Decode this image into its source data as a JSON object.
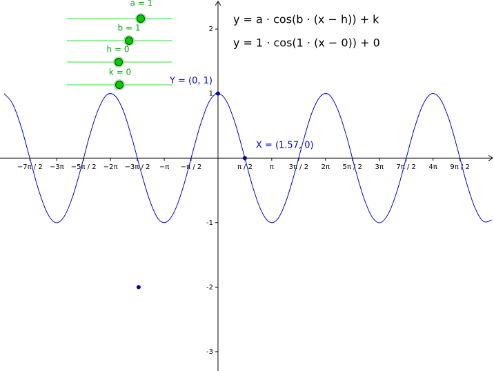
{
  "chart_data": {
    "type": "line",
    "xlim": [
      -12.74,
      16.13
    ],
    "ylim": [
      -3.3,
      2.45
    ],
    "xticks": [
      {
        "value": -10.9956,
        "label": "−7π / 2"
      },
      {
        "value": -9.4248,
        "label": "−3π"
      },
      {
        "value": -7.854,
        "label": "−5π / 2"
      },
      {
        "value": -6.2832,
        "label": "−2π"
      },
      {
        "value": -4.7124,
        "label": "−3π / 2"
      },
      {
        "value": -3.1416,
        "label": "−π"
      },
      {
        "value": -1.5708,
        "label": "−π / 2"
      },
      {
        "value": 1.5708,
        "label": "π / 2"
      },
      {
        "value": 3.1416,
        "label": "π"
      },
      {
        "value": 4.7124,
        "label": "3π / 2"
      },
      {
        "value": 6.2832,
        "label": "2π"
      },
      {
        "value": 7.854,
        "label": "5π / 2"
      },
      {
        "value": 9.4248,
        "label": "3π"
      },
      {
        "value": 10.9956,
        "label": "7π / 2"
      },
      {
        "value": 12.5664,
        "label": "4π"
      },
      {
        "value": 14.1372,
        "label": "9π / 2"
      }
    ],
    "yticks": [
      2,
      1,
      -1,
      -2,
      -3
    ],
    "grid": false,
    "x": [
      -12.5,
      -12,
      -11.5,
      -11,
      -10.5,
      -10,
      -9.5,
      -9,
      -8.5,
      -8,
      -7.5,
      -7,
      -6.5,
      -6,
      -5.5,
      -5,
      -4.5,
      -4,
      -3.5,
      -3,
      -2.5,
      -2,
      -1.5,
      -1,
      -0.5,
      0,
      0.5,
      1,
      1.5,
      2,
      2.5,
      3,
      3.5,
      4,
      4.5,
      5,
      5.5,
      6,
      6.5,
      7,
      7.5,
      8,
      8.5,
      9,
      9.5,
      10,
      10.5,
      11,
      11.5,
      12,
      12.5,
      13,
      13.5,
      14,
      14.5,
      15,
      15.5,
      16
    ],
    "series": [
      {
        "color": "#0000cc",
        "values": [
          1.0,
          0.84,
          0.48,
          0.0,
          -0.48,
          -0.84,
          -1.0,
          -0.91,
          -0.6,
          -0.15,
          0.35,
          0.75,
          0.98,
          0.96,
          0.71,
          0.28,
          -0.21,
          -0.65,
          -0.94,
          -0.99,
          -0.8,
          -0.42,
          0.07,
          0.54,
          0.88,
          1,
          0.88,
          0.54,
          0.07,
          -0.42,
          -0.8,
          -0.99,
          -0.94,
          -0.65,
          -0.21,
          0.28,
          0.71,
          0.96,
          0.98,
          0.75,
          0.35,
          -0.15,
          -0.6,
          -0.91,
          -1.0,
          -0.84,
          -0.48,
          0.0,
          0.48,
          0.84,
          1.0,
          0.91,
          0.6,
          0.14,
          -0.36,
          -0.76,
          -0.98,
          -0.96
        ]
      }
    ],
    "points": [
      {
        "label": "Y = (0, 1)",
        "x": 0,
        "y": 1
      },
      {
        "label": "X = (1.57, 0)",
        "x": 1.57,
        "y": 0
      },
      {
        "x": -4.64,
        "y": -2
      }
    ],
    "annotations": [
      "y = a · cos(b · (x − h)) + k",
      "y = 1 · cos(1 · (x − 0)) + 0"
    ]
  },
  "sliders": [
    "a = 1",
    "b = 1",
    "h = 0",
    "k = 0"
  ]
}
